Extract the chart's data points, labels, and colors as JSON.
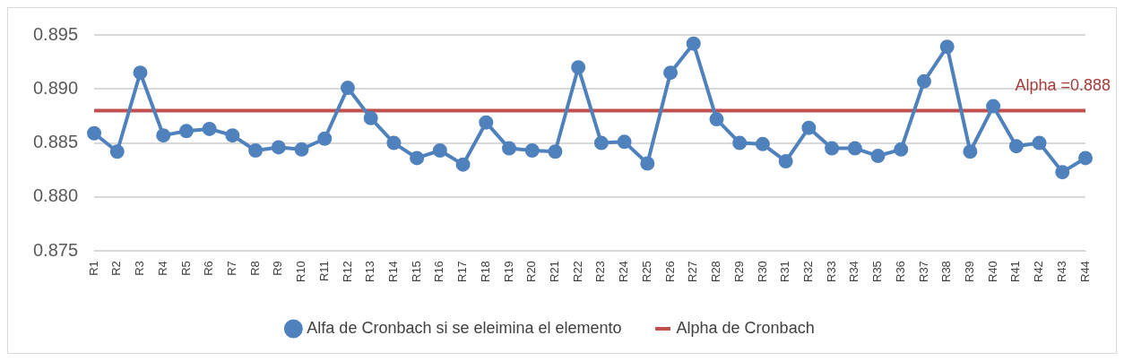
{
  "chart_data": {
    "type": "line",
    "categories": [
      "R1",
      "R2",
      "R3",
      "R4",
      "R5",
      "R6",
      "R7",
      "R8",
      "R9",
      "R10",
      "R11",
      "R12",
      "R13",
      "R14",
      "R15",
      "R16",
      "R17",
      "R18",
      "R19",
      "R20",
      "R21",
      "R22",
      "R23",
      "R24",
      "R25",
      "R26",
      "R27",
      "R28",
      "R29",
      "R30",
      "R31",
      "R32",
      "R33",
      "R34",
      "R35",
      "R36",
      "R37",
      "R38",
      "R39",
      "R40",
      "R41",
      "R42",
      "R43",
      "R44"
    ],
    "series": [
      {
        "name": "Alfa de Cronbach si se eleimina el elemento",
        "color": "#4f81bd",
        "marker": "circle",
        "values": [
          0.8859,
          0.8842,
          0.8915,
          0.8857,
          0.8861,
          0.8863,
          0.8857,
          0.8843,
          0.8846,
          0.8844,
          0.8854,
          0.8901,
          0.8873,
          0.885,
          0.8836,
          0.8843,
          0.883,
          0.8869,
          0.8845,
          0.8843,
          0.8842,
          0.892,
          0.885,
          0.8851,
          0.8831,
          0.8915,
          0.8942,
          0.8872,
          0.885,
          0.8849,
          0.8833,
          0.8864,
          0.8845,
          0.8845,
          0.8838,
          0.8844,
          0.8907,
          0.8939,
          0.8842,
          0.8884,
          0.8847,
          0.885,
          0.8823,
          0.8836
        ]
      },
      {
        "name": "Alpha de Cronbach",
        "color": "#c0504d",
        "marker": "none",
        "values": [
          0.888,
          0.888,
          0.888,
          0.888,
          0.888,
          0.888,
          0.888,
          0.888,
          0.888,
          0.888,
          0.888,
          0.888,
          0.888,
          0.888,
          0.888,
          0.888,
          0.888,
          0.888,
          0.888,
          0.888,
          0.888,
          0.888,
          0.888,
          0.888,
          0.888,
          0.888,
          0.888,
          0.888,
          0.888,
          0.888,
          0.888,
          0.888,
          0.888,
          0.888,
          0.888,
          0.888,
          0.888,
          0.888,
          0.888,
          0.888,
          0.888,
          0.888,
          0.888,
          0.888
        ]
      }
    ],
    "annotations": [
      {
        "text": "Alpha =0.888",
        "x": "R44",
        "y": 0.888
      }
    ],
    "ylim": [
      0.875,
      0.895
    ],
    "yticks": [
      0.875,
      {
        "value": 0.88,
        "label": "0.880"
      },
      0.885,
      {
        "value": 0.89,
        "label": "0.890"
      },
      0.895
    ],
    "grid": "y",
    "legend": "bottom"
  }
}
